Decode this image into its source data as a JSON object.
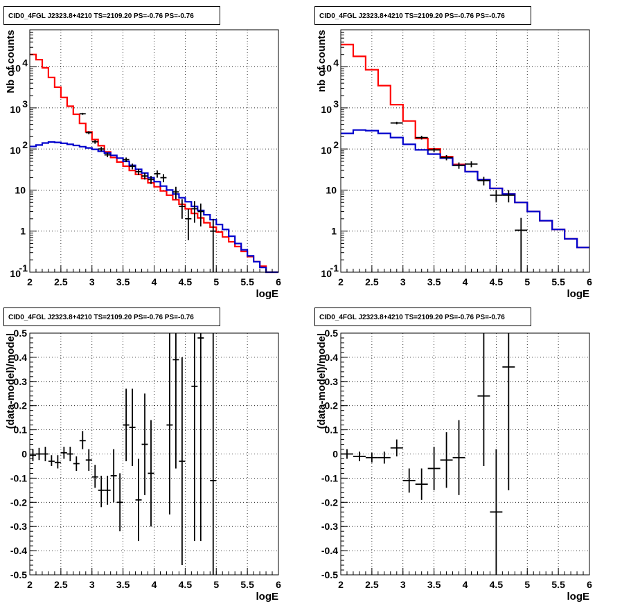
{
  "chart_data": [
    {
      "type": "line",
      "title": "CID0_4FGL J2323.8+4210 TS=2109.20 PS=-0.76 PS=-0.76",
      "xlabel": "logE",
      "ylabel": "Nb of counts",
      "xlim": [
        2,
        6
      ],
      "ylim": [
        0.1,
        80000
      ],
      "yscale": "log",
      "grid": true,
      "x_ticks": [
        "2",
        "2.5",
        "3",
        "3.5",
        "4",
        "4.5",
        "5",
        "5.5",
        "6"
      ],
      "y_ticks": [
        {
          "v": 0.1,
          "base": "10",
          "exp": "-1"
        },
        {
          "v": 1,
          "label": "1"
        },
        {
          "v": 10,
          "label": "10"
        },
        {
          "v": 100,
          "base": "10",
          "exp": "2"
        },
        {
          "v": 1000,
          "base": "10",
          "exp": "3"
        },
        {
          "v": 10000,
          "base": "10",
          "exp": "4"
        }
      ],
      "hist_edges_start": 2.0,
      "hist_bin_width": 0.1,
      "series": [
        {
          "color": "#ff0000",
          "values": [
            20000,
            15000,
            9500,
            5500,
            3200,
            1800,
            1100,
            700,
            420,
            260,
            170,
            120,
            85,
            62,
            48,
            38,
            30,
            24,
            19,
            15,
            12,
            9.5,
            7.5,
            5.8,
            4.5,
            3.5,
            2.7,
            2.1,
            1.6,
            1.25,
            0.95,
            0.72,
            0.55,
            0.42,
            0.32,
            0.24,
            0.18,
            0.14,
            0.1,
            0.1
          ]
        },
        {
          "color": "#0000cc",
          "values": [
            115,
            125,
            140,
            148,
            145,
            138,
            130,
            122,
            114,
            106,
            98,
            88,
            80,
            70,
            60,
            50,
            40,
            32,
            26,
            20,
            16,
            12.5,
            10,
            8,
            6.5,
            5.2,
            4,
            3.2,
            2.5,
            1.9,
            1.45,
            1.1,
            0.75,
            0.5,
            0.35,
            0.25,
            0.18,
            0.13,
            0.1,
            0.1
          ]
        }
      ],
      "points": [
        {
          "x": 2.85,
          "y": 720,
          "lo": 680,
          "hi": 760
        },
        {
          "x": 2.95,
          "y": 250,
          "lo": 228,
          "hi": 272
        },
        {
          "x": 3.05,
          "y": 150,
          "lo": 134,
          "hi": 166
        },
        {
          "x": 3.15,
          "y": 100,
          "lo": 88,
          "hi": 112
        },
        {
          "x": 3.25,
          "y": 72,
          "lo": 63,
          "hi": 81
        },
        {
          "x": 3.55,
          "y": 55,
          "lo": 48,
          "hi": 62
        },
        {
          "x": 3.65,
          "y": 38,
          "lo": 32,
          "hi": 44
        },
        {
          "x": 3.75,
          "y": 28,
          "lo": 23,
          "hi": 33
        },
        {
          "x": 3.85,
          "y": 22,
          "lo": 18,
          "hi": 26
        },
        {
          "x": 3.95,
          "y": 18,
          "lo": 14,
          "hi": 22
        },
        {
          "x": 4.05,
          "y": 25,
          "lo": 20,
          "hi": 30
        },
        {
          "x": 4.15,
          "y": 20,
          "lo": 15.5,
          "hi": 24.5
        },
        {
          "x": 4.35,
          "y": 9,
          "lo": 6,
          "hi": 12
        },
        {
          "x": 4.45,
          "y": 4,
          "lo": 2,
          "hi": 6
        },
        {
          "x": 4.55,
          "y": 2,
          "lo": 0.6,
          "hi": 3.4
        },
        {
          "x": 4.65,
          "y": 3.5,
          "lo": 1.6,
          "hi": 5.4
        },
        {
          "x": 4.75,
          "y": 3,
          "lo": 1.3,
          "hi": 4.7
        },
        {
          "x": 4.95,
          "y": 1,
          "lo": 0.1,
          "hi": 2
        }
      ]
    },
    {
      "type": "line",
      "title": "CID0_4FGL J2323.8+4210 TS=2109.20 PS=-0.76 PS=-0.76",
      "xlabel": "logE",
      "ylabel": "nb of counts",
      "xlim": [
        2,
        6
      ],
      "ylim": [
        0.1,
        80000
      ],
      "yscale": "log",
      "grid": true,
      "x_ticks": [
        "2",
        "2.5",
        "3",
        "3.5",
        "4",
        "4.5",
        "5",
        "5.5",
        "6"
      ],
      "y_ticks": [
        {
          "v": 0.1,
          "base": "10",
          "exp": "-1"
        },
        {
          "v": 1,
          "label": "1"
        },
        {
          "v": 10,
          "label": "10"
        },
        {
          "v": 100,
          "base": "10",
          "exp": "2"
        },
        {
          "v": 1000,
          "base": "10",
          "exp": "3"
        },
        {
          "v": 10000,
          "base": "10",
          "exp": "4"
        }
      ],
      "hist_edges_start": 2.0,
      "hist_bin_width": 0.2,
      "series": [
        {
          "color": "#ff0000",
          "values": [
            35000,
            18000,
            8500,
            3500,
            1200,
            480,
            180,
            100,
            65,
            42,
            28,
            18,
            11,
            8,
            5,
            3,
            1.8,
            1.1,
            0.65,
            0.4
          ]
        },
        {
          "color": "#0000cc",
          "values": [
            240,
            290,
            280,
            240,
            190,
            130,
            95,
            75,
            60,
            40,
            28,
            18,
            11,
            8,
            5,
            3,
            1.8,
            1.1,
            0.65,
            0.4
          ]
        }
      ],
      "points": [
        {
          "x": 2.9,
          "y": 430,
          "lo": 400,
          "hi": 460
        },
        {
          "x": 3.3,
          "y": 190,
          "lo": 170,
          "hi": 210
        },
        {
          "x": 3.5,
          "y": 95,
          "lo": 83,
          "hi": 107
        },
        {
          "x": 3.7,
          "y": 62,
          "lo": 53,
          "hi": 71
        },
        {
          "x": 3.9,
          "y": 40,
          "lo": 33,
          "hi": 47
        },
        {
          "x": 4.1,
          "y": 43,
          "lo": 36,
          "hi": 50
        },
        {
          "x": 4.3,
          "y": 17,
          "lo": 13,
          "hi": 21
        },
        {
          "x": 4.5,
          "y": 7.5,
          "lo": 5,
          "hi": 10
        },
        {
          "x": 4.7,
          "y": 7.5,
          "lo": 5,
          "hi": 10
        },
        {
          "x": 4.9,
          "y": 1.05,
          "lo": 0.1,
          "hi": 2.1
        }
      ]
    },
    {
      "type": "scatter",
      "title": "CID0_4FGL J2323.8+4210 TS=2109.20 PS=-0.76 PS=-0.76",
      "xlabel": "logE",
      "ylabel": "(data-model)/model",
      "xlim": [
        2,
        6
      ],
      "ylim": [
        -0.5,
        0.5
      ],
      "grid": true,
      "x_ticks": [
        "2",
        "2.5",
        "3",
        "3.5",
        "4",
        "4.5",
        "5",
        "5.5",
        "6"
      ],
      "y_ticks": [
        "-0.5",
        "-0.4",
        "-0.3",
        "-0.2",
        "-0.1",
        "0",
        "0.1",
        "0.2",
        "0.3",
        "0.4",
        "0.5"
      ],
      "xerr": 0.05,
      "points": [
        {
          "x": 2.05,
          "y": -0.005,
          "lo": -0.03,
          "hi": 0.02
        },
        {
          "x": 2.15,
          "y": 0.0,
          "lo": -0.025,
          "hi": 0.025
        },
        {
          "x": 2.25,
          "y": 0.0,
          "lo": -0.03,
          "hi": 0.03
        },
        {
          "x": 2.35,
          "y": -0.03,
          "lo": -0.05,
          "hi": -0.005
        },
        {
          "x": 2.45,
          "y": -0.035,
          "lo": -0.06,
          "hi": -0.005
        },
        {
          "x": 2.55,
          "y": 0.005,
          "lo": -0.02,
          "hi": 0.03
        },
        {
          "x": 2.65,
          "y": 0.0,
          "lo": -0.03,
          "hi": 0.03
        },
        {
          "x": 2.75,
          "y": -0.04,
          "lo": -0.07,
          "hi": -0.01
        },
        {
          "x": 2.85,
          "y": 0.055,
          "lo": 0.02,
          "hi": 0.095
        },
        {
          "x": 2.95,
          "y": -0.025,
          "lo": -0.07,
          "hi": 0.02
        },
        {
          "x": 3.05,
          "y": -0.095,
          "lo": -0.14,
          "hi": -0.045
        },
        {
          "x": 3.15,
          "y": -0.15,
          "lo": -0.22,
          "hi": -0.09
        },
        {
          "x": 3.25,
          "y": -0.15,
          "lo": -0.21,
          "hi": -0.09
        },
        {
          "x": 3.35,
          "y": -0.09,
          "lo": -0.2,
          "hi": 0.02
        },
        {
          "x": 3.45,
          "y": -0.2,
          "lo": -0.32,
          "hi": -0.08
        },
        {
          "x": 3.55,
          "y": 0.12,
          "lo": -0.03,
          "hi": 0.27
        },
        {
          "x": 3.65,
          "y": 0.11,
          "lo": -0.05,
          "hi": 0.27
        },
        {
          "x": 3.75,
          "y": -0.19,
          "lo": -0.36,
          "hi": -0.02
        },
        {
          "x": 3.85,
          "y": 0.04,
          "lo": -0.17,
          "hi": 0.25
        },
        {
          "x": 3.95,
          "y": -0.08,
          "lo": -0.3,
          "hi": 0.14
        },
        {
          "x": 4.25,
          "y": 0.12,
          "lo": -0.25,
          "hi": 0.5
        },
        {
          "x": 4.35,
          "y": 0.39,
          "lo": -0.06,
          "hi": 0.5
        },
        {
          "x": 4.45,
          "y": -0.03,
          "lo": -0.46,
          "hi": 0.4
        },
        {
          "x": 4.65,
          "y": 0.28,
          "lo": -0.36,
          "hi": 0.5
        },
        {
          "x": 4.75,
          "y": 0.48,
          "lo": -0.36,
          "hi": 0.5
        },
        {
          "x": 4.95,
          "y": -0.11,
          "lo": -0.5,
          "hi": 0.5
        }
      ]
    },
    {
      "type": "scatter",
      "title": "CID0_4FGL J2323.8+4210 TS=2109.20 PS=-0.76 PS=-0.76",
      "xlabel": "logE",
      "ylabel": "(data-model)/model",
      "xlim": [
        2,
        6
      ],
      "ylim": [
        -0.5,
        0.5
      ],
      "grid": true,
      "x_ticks": [
        "2",
        "2.5",
        "3",
        "3.5",
        "4",
        "4.5",
        "5",
        "5.5",
        "6"
      ],
      "y_ticks": [
        "-0.5",
        "-0.4",
        "-0.3",
        "-0.2",
        "-0.1",
        "0",
        "0.1",
        "0.2",
        "0.3",
        "0.4",
        "0.5"
      ],
      "xerr": 0.1,
      "points": [
        {
          "x": 2.1,
          "y": 0.0,
          "lo": -0.02,
          "hi": 0.02
        },
        {
          "x": 2.3,
          "y": -0.01,
          "lo": -0.03,
          "hi": 0.01
        },
        {
          "x": 2.5,
          "y": -0.015,
          "lo": -0.035,
          "hi": 0.005
        },
        {
          "x": 2.7,
          "y": -0.015,
          "lo": -0.04,
          "hi": 0.01
        },
        {
          "x": 2.9,
          "y": 0.025,
          "lo": -0.01,
          "hi": 0.06
        },
        {
          "x": 3.1,
          "y": -0.11,
          "lo": -0.16,
          "hi": -0.06
        },
        {
          "x": 3.3,
          "y": -0.125,
          "lo": -0.19,
          "hi": -0.06
        },
        {
          "x": 3.5,
          "y": -0.06,
          "lo": -0.15,
          "hi": 0.03
        },
        {
          "x": 3.7,
          "y": -0.025,
          "lo": -0.14,
          "hi": 0.09
        },
        {
          "x": 3.9,
          "y": -0.015,
          "lo": -0.17,
          "hi": 0.14
        },
        {
          "x": 4.3,
          "y": 0.24,
          "lo": -0.05,
          "hi": 0.5
        },
        {
          "x": 4.5,
          "y": -0.24,
          "lo": -0.5,
          "hi": 0.02
        },
        {
          "x": 4.7,
          "y": 0.36,
          "lo": -0.15,
          "hi": 0.5
        }
      ]
    }
  ]
}
